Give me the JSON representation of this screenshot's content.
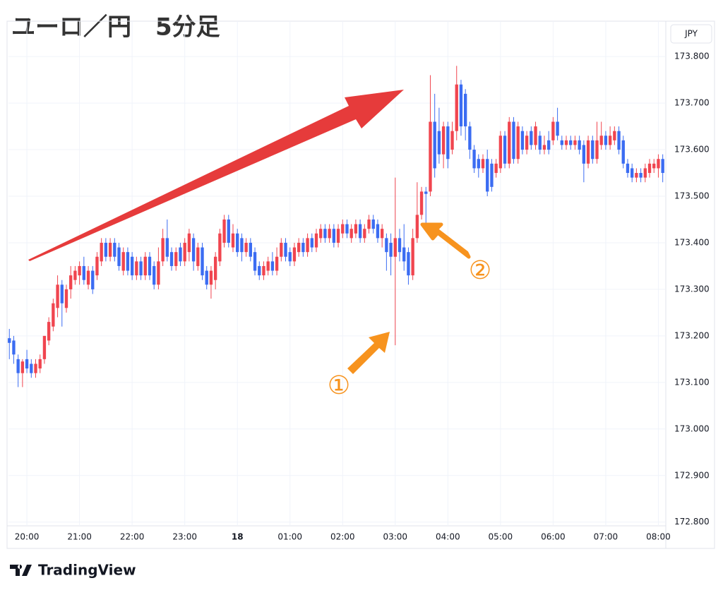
{
  "chart_data": {
    "type": "candlestick",
    "title": "ユーロ／円　5分足",
    "currency": "JPY",
    "source": "TradingView",
    "annotations": [
      "①",
      "②"
    ],
    "up_color": "#f0454f",
    "down_color": "#3b6cf2",
    "grid": true,
    "ylim": [
      172.792,
      173.876
    ],
    "yticks": [
      {
        "value": 172.8,
        "label": "172.800"
      },
      {
        "value": 172.9,
        "label": "172.900"
      },
      {
        "value": 173.0,
        "label": "173.000"
      },
      {
        "value": 173.1,
        "label": "173.100"
      },
      {
        "value": 173.2,
        "label": "173.200"
      },
      {
        "value": 173.3,
        "label": "173.300"
      },
      {
        "value": 173.4,
        "label": "173.400"
      },
      {
        "value": 173.5,
        "label": "173.500"
      },
      {
        "value": 173.6,
        "label": "173.600"
      },
      {
        "value": 173.7,
        "label": "173.700"
      },
      {
        "value": 173.8,
        "label": "173.800"
      }
    ],
    "xlim": [
      -0.2,
      149.7
    ],
    "xticks": [
      {
        "value": 4,
        "label": "20:00"
      },
      {
        "value": 16,
        "label": "21:00"
      },
      {
        "value": 28,
        "label": "22:00"
      },
      {
        "value": 40,
        "label": "23:00"
      },
      {
        "value": 52,
        "label": "18"
      },
      {
        "value": 64,
        "label": "01:00"
      },
      {
        "value": 76,
        "label": "02:00"
      },
      {
        "value": 88,
        "label": "03:00"
      },
      {
        "value": 100,
        "label": "04:00"
      },
      {
        "value": 112,
        "label": "05:00"
      },
      {
        "value": 124,
        "label": "06:00"
      },
      {
        "value": 136,
        "label": "07:00"
      },
      {
        "value": 148,
        "label": "08:00"
      }
    ],
    "ohlc": [
      [
        173.195,
        173.215,
        173.15,
        173.185
      ],
      [
        173.19,
        173.2,
        173.14,
        173.16
      ],
      [
        173.15,
        173.16,
        173.09,
        173.12
      ],
      [
        173.12,
        173.15,
        173.09,
        173.145
      ],
      [
        173.15,
        173.17,
        173.12,
        173.13
      ],
      [
        173.14,
        173.15,
        173.11,
        173.12
      ],
      [
        173.12,
        173.15,
        173.11,
        173.14
      ],
      [
        173.13,
        173.16,
        173.12,
        173.15
      ],
      [
        173.15,
        173.2,
        173.14,
        173.2
      ],
      [
        173.19,
        173.24,
        173.18,
        173.23
      ],
      [
        173.22,
        173.28,
        173.21,
        173.27
      ],
      [
        173.26,
        173.33,
        173.24,
        173.31
      ],
      [
        173.31,
        173.32,
        173.22,
        173.27
      ],
      [
        173.26,
        173.31,
        173.25,
        173.3
      ],
      [
        173.3,
        173.35,
        173.28,
        173.33
      ],
      [
        173.32,
        173.35,
        173.31,
        173.34
      ],
      [
        173.33,
        173.36,
        173.31,
        173.35
      ],
      [
        173.35,
        173.37,
        173.31,
        173.32
      ],
      [
        173.31,
        173.35,
        173.3,
        173.34
      ],
      [
        173.34,
        173.35,
        173.29,
        173.3
      ],
      [
        173.33,
        173.38,
        173.32,
        173.37
      ],
      [
        173.36,
        173.41,
        173.35,
        173.4
      ],
      [
        173.4,
        173.41,
        173.36,
        173.37
      ],
      [
        173.37,
        173.41,
        173.36,
        173.4
      ],
      [
        173.4,
        173.41,
        173.36,
        173.37
      ],
      [
        173.39,
        173.4,
        173.34,
        173.35
      ],
      [
        173.34,
        173.39,
        173.33,
        173.38
      ],
      [
        173.38,
        173.39,
        173.33,
        173.34
      ],
      [
        173.37,
        173.38,
        173.32,
        173.33
      ],
      [
        173.33,
        173.37,
        173.32,
        173.36
      ],
      [
        173.36,
        173.37,
        173.32,
        173.33
      ],
      [
        173.33,
        173.38,
        173.32,
        173.37
      ],
      [
        173.37,
        173.38,
        173.32,
        173.33
      ],
      [
        173.35,
        173.36,
        173.3,
        173.31
      ],
      [
        173.31,
        173.39,
        173.3,
        173.36
      ],
      [
        173.36,
        173.43,
        173.35,
        173.41
      ],
      [
        173.41,
        173.45,
        173.36,
        173.37
      ],
      [
        173.38,
        173.39,
        173.34,
        173.35
      ],
      [
        173.35,
        173.39,
        173.34,
        173.38
      ],
      [
        173.39,
        173.4,
        173.35,
        173.36
      ],
      [
        173.36,
        173.41,
        173.35,
        173.4
      ],
      [
        173.38,
        173.43,
        173.36,
        173.42
      ],
      [
        173.41,
        173.42,
        173.34,
        173.36
      ],
      [
        173.35,
        173.4,
        173.34,
        173.39
      ],
      [
        173.39,
        173.4,
        173.32,
        173.33
      ],
      [
        173.34,
        173.35,
        173.3,
        173.31
      ],
      [
        173.31,
        173.35,
        173.28,
        173.34
      ],
      [
        173.32,
        173.38,
        173.3,
        173.37
      ],
      [
        173.36,
        173.43,
        173.35,
        173.42
      ],
      [
        173.4,
        173.46,
        173.39,
        173.45
      ],
      [
        173.45,
        173.46,
        173.39,
        173.4
      ],
      [
        173.39,
        173.44,
        173.38,
        173.42
      ],
      [
        173.42,
        173.43,
        173.37,
        173.38
      ],
      [
        173.41,
        173.42,
        173.36,
        173.38
      ],
      [
        173.38,
        173.41,
        173.37,
        173.4
      ],
      [
        173.4,
        173.41,
        173.36,
        173.37
      ],
      [
        173.38,
        173.39,
        173.33,
        173.34
      ],
      [
        173.35,
        173.36,
        173.32,
        173.33
      ],
      [
        173.33,
        173.36,
        173.32,
        173.35
      ],
      [
        173.34,
        173.37,
        173.33,
        173.36
      ],
      [
        173.36,
        173.38,
        173.33,
        173.34
      ],
      [
        173.34,
        173.39,
        173.33,
        173.37
      ],
      [
        173.37,
        173.41,
        173.36,
        173.4
      ],
      [
        173.4,
        173.41,
        173.36,
        173.37
      ],
      [
        173.38,
        173.39,
        173.35,
        173.36
      ],
      [
        173.36,
        173.4,
        173.35,
        173.39
      ],
      [
        173.38,
        173.41,
        173.37,
        173.4
      ],
      [
        173.4,
        173.41,
        173.37,
        173.38
      ],
      [
        173.38,
        173.42,
        173.37,
        173.41
      ],
      [
        173.41,
        173.42,
        173.38,
        173.39
      ],
      [
        173.39,
        173.43,
        173.38,
        173.42
      ],
      [
        173.41,
        173.44,
        173.4,
        173.43
      ],
      [
        173.43,
        173.44,
        173.4,
        173.41
      ],
      [
        173.41,
        173.44,
        173.4,
        173.43
      ],
      [
        173.43,
        173.44,
        173.39,
        173.4
      ],
      [
        173.4,
        173.44,
        173.39,
        173.43
      ],
      [
        173.42,
        173.45,
        173.41,
        173.44
      ],
      [
        173.44,
        173.45,
        173.41,
        173.42
      ],
      [
        173.41,
        173.44,
        173.4,
        173.43
      ],
      [
        173.42,
        173.45,
        173.41,
        173.44
      ],
      [
        173.44,
        173.45,
        173.4,
        173.41
      ],
      [
        173.41,
        173.44,
        173.4,
        173.43
      ],
      [
        173.43,
        173.46,
        173.42,
        173.45
      ],
      [
        173.45,
        173.46,
        173.42,
        173.43
      ],
      [
        173.44,
        173.45,
        173.4,
        173.41
      ],
      [
        173.41,
        173.44,
        173.39,
        173.43
      ],
      [
        173.41,
        173.42,
        173.34,
        173.38
      ],
      [
        173.4,
        173.42,
        173.33,
        173.37
      ],
      [
        173.37,
        173.54,
        173.18,
        173.41
      ],
      [
        173.41,
        173.43,
        173.36,
        173.38
      ],
      [
        173.39,
        173.44,
        173.34,
        173.36
      ],
      [
        173.38,
        173.39,
        173.31,
        173.33
      ],
      [
        173.33,
        173.43,
        173.32,
        173.41
      ],
      [
        173.41,
        173.53,
        173.4,
        173.46
      ],
      [
        173.46,
        173.52,
        173.45,
        173.51
      ],
      [
        173.51,
        173.52,
        173.44,
        173.505
      ],
      [
        173.51,
        173.76,
        173.5,
        173.66
      ],
      [
        173.66,
        173.72,
        173.54,
        173.56
      ],
      [
        173.64,
        173.69,
        173.57,
        173.59
      ],
      [
        173.59,
        173.66,
        173.56,
        173.65
      ],
      [
        173.65,
        173.66,
        173.56,
        173.58
      ],
      [
        173.6,
        173.66,
        173.59,
        173.64
      ],
      [
        173.64,
        173.78,
        173.62,
        173.74
      ],
      [
        173.74,
        173.75,
        173.63,
        173.65
      ],
      [
        173.72,
        173.73,
        173.62,
        173.65
      ],
      [
        173.65,
        173.66,
        173.58,
        173.6
      ],
      [
        173.6,
        173.61,
        173.55,
        173.56
      ],
      [
        173.58,
        173.59,
        173.54,
        173.56
      ],
      [
        173.56,
        173.59,
        173.55,
        173.58
      ],
      [
        173.58,
        173.6,
        173.5,
        173.51
      ],
      [
        173.57,
        173.58,
        173.51,
        173.52
      ],
      [
        173.55,
        173.58,
        173.54,
        173.57
      ],
      [
        173.56,
        173.64,
        173.55,
        173.63
      ],
      [
        173.63,
        173.64,
        173.56,
        173.57
      ],
      [
        173.57,
        173.67,
        173.56,
        173.66
      ],
      [
        173.66,
        173.67,
        173.57,
        173.58
      ],
      [
        173.58,
        173.66,
        173.57,
        173.65
      ],
      [
        173.64,
        173.65,
        173.59,
        173.6
      ],
      [
        173.6,
        173.64,
        173.59,
        173.63
      ],
      [
        173.64,
        173.65,
        173.6,
        173.61
      ],
      [
        173.61,
        173.66,
        173.6,
        173.65
      ],
      [
        173.63,
        173.64,
        173.59,
        173.6
      ],
      [
        173.6,
        173.63,
        173.59,
        173.61
      ],
      [
        173.62,
        173.64,
        173.59,
        173.6
      ],
      [
        173.62,
        173.67,
        173.61,
        173.66
      ],
      [
        173.66,
        173.69,
        173.62,
        173.63
      ],
      [
        173.62,
        173.63,
        173.6,
        173.61
      ],
      [
        173.61,
        173.63,
        173.6,
        173.62
      ],
      [
        173.62,
        173.63,
        173.6,
        173.61
      ],
      [
        173.61,
        173.63,
        173.6,
        173.62
      ],
      [
        173.62,
        173.63,
        173.59,
        173.6
      ],
      [
        173.61,
        173.62,
        173.53,
        173.57
      ],
      [
        173.57,
        173.63,
        173.56,
        173.62
      ],
      [
        173.62,
        173.63,
        173.57,
        173.58
      ],
      [
        173.58,
        173.66,
        173.57,
        173.62
      ],
      [
        173.61,
        173.66,
        173.6,
        173.63
      ],
      [
        173.63,
        173.64,
        173.6,
        173.61
      ],
      [
        173.61,
        173.65,
        173.6,
        173.63
      ],
      [
        173.62,
        173.65,
        173.61,
        173.64
      ],
      [
        173.64,
        173.65,
        173.59,
        173.6
      ],
      [
        173.62,
        173.63,
        173.56,
        173.57
      ],
      [
        173.57,
        173.58,
        173.54,
        173.55
      ],
      [
        173.56,
        173.57,
        173.53,
        173.54
      ],
      [
        173.54,
        173.56,
        173.53,
        173.55
      ],
      [
        173.55,
        173.56,
        173.53,
        173.54
      ],
      [
        173.54,
        173.57,
        173.53,
        173.56
      ],
      [
        173.55,
        173.58,
        173.54,
        173.57
      ],
      [
        173.56,
        173.58,
        173.55,
        173.57
      ],
      [
        173.56,
        173.59,
        173.54,
        173.58
      ],
      [
        173.58,
        173.59,
        173.53,
        173.55
      ]
    ]
  }
}
